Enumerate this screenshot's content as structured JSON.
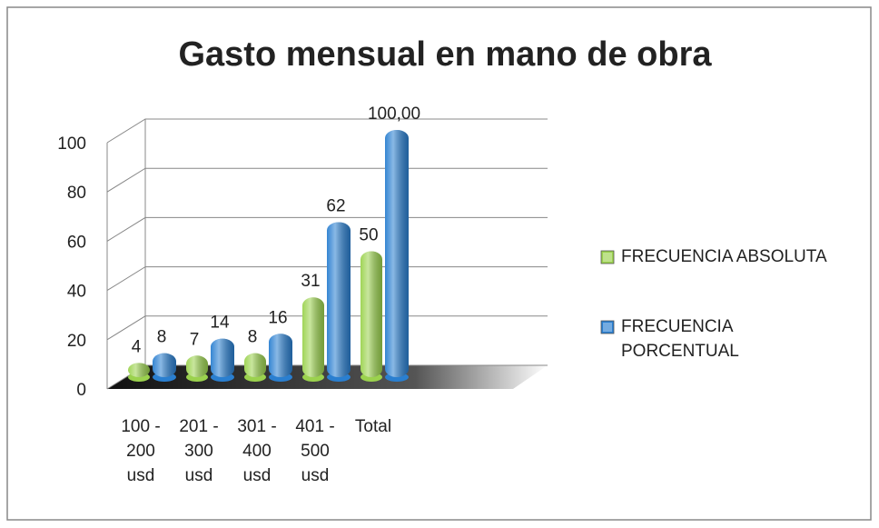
{
  "chart_data": {
    "type": "bar3d",
    "title": "Gasto mensual en mano de obra",
    "categories": [
      "100 - 200 usd",
      "201 - 300 usd",
      "301 - 400 usd",
      "401 - 500 usd",
      "Total"
    ],
    "series": [
      {
        "name": "FRECUENCIA ABSOLUTA",
        "color": "#9bd24e",
        "values": [
          4,
          7,
          8,
          31,
          50
        ]
      },
      {
        "name": "FRECUENCIA PORCENTUAL",
        "color": "#2a7fd0",
        "values": [
          8,
          14,
          16,
          62,
          100
        ],
        "value_labels": [
          "8",
          "14",
          "16",
          "62",
          "100,00"
        ]
      }
    ],
    "ylim": [
      0,
      100
    ],
    "yticks": [
      0,
      20,
      40,
      60,
      80,
      100
    ],
    "grid": true,
    "legend": "right"
  }
}
